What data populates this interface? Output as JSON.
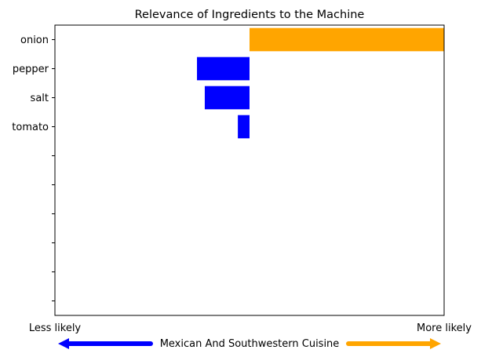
{
  "chart_data": {
    "type": "bar",
    "orientation": "horizontal",
    "title": "Relevance of Ingredients to the Machine",
    "categories": [
      "onion",
      "pepper",
      "salt",
      "tomato"
    ],
    "values": [
      1.0,
      -0.27,
      -0.23,
      -0.06
    ],
    "colors": [
      "#FFA500",
      "#0000FF",
      "#0000FF",
      "#0000FF"
    ],
    "xlim": [
      -1.0,
      1.0
    ],
    "y_slots": 10,
    "x_tick_labels": {
      "left": "Less likely",
      "right": "More likely"
    },
    "legend": {
      "label": "Mexican And Southwestern Cuisine",
      "negative_color": "#0000FF",
      "positive_color": "#FFA500"
    }
  }
}
